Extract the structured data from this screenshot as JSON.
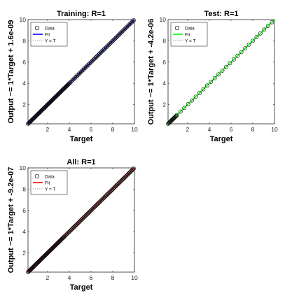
{
  "chart_data": [
    {
      "type": "scatter",
      "title": "Training: R=1",
      "xlabel": "Target",
      "ylabel": "Output ~= 1*Target + 1.6e-09",
      "xlim": [
        0.2,
        10
      ],
      "ylim": [
        0.2,
        10
      ],
      "x_ticks": [
        2,
        4,
        6,
        8,
        10
      ],
      "y_ticks": [
        2,
        4,
        6,
        8,
        10
      ],
      "fit_color": "#0000ff",
      "data_marker_color": "#000000",
      "legend": {
        "placement": "top-left",
        "entries": [
          "Data",
          "Fit",
          "Y = T"
        ]
      },
      "fit": {
        "slope": 1,
        "intercept": 1.6e-09
      },
      "data_density": {
        "dense_to": 4.0,
        "sparse_step": 0.09,
        "dense_step": 0.05
      }
    },
    {
      "type": "scatter",
      "title": "Test: R=1",
      "xlabel": "Target",
      "ylabel": "Output ~= 1*Target + -4.2e-06",
      "xlim": [
        0.2,
        10
      ],
      "ylim": [
        0.2,
        10
      ],
      "x_ticks": [
        2,
        4,
        6,
        8,
        10
      ],
      "y_ticks": [
        2,
        4,
        6,
        8,
        10
      ],
      "fit_color": "#00ff00",
      "data_marker_color": "#000000",
      "legend": {
        "placement": "top-left",
        "entries": [
          "Data",
          "Fit",
          "Y = T"
        ]
      },
      "fit": {
        "slope": 1,
        "intercept": -4.2e-06
      },
      "data_density": {
        "dense_to": 1.0,
        "sparse_step": 0.35,
        "dense_step": 0.05
      }
    },
    {
      "type": "scatter",
      "title": "All: R=1",
      "xlabel": "Target",
      "ylabel": "Output ~= 1*Target + -9.2e-07",
      "xlim": [
        0.2,
        10
      ],
      "ylim": [
        0.2,
        10
      ],
      "x_ticks": [
        2,
        4,
        6,
        8,
        10
      ],
      "y_ticks": [
        2,
        4,
        6,
        8,
        10
      ],
      "fit_color": "#ff0000",
      "data_marker_color": "#000000",
      "legend": {
        "placement": "top-left",
        "entries": [
          "Data",
          "Fit",
          "Y = T"
        ]
      },
      "fit": {
        "slope": 1,
        "intercept": -9.2e-07
      },
      "data_density": {
        "dense_to": 3.5,
        "sparse_step": 0.07,
        "dense_step": 0.05
      }
    }
  ]
}
